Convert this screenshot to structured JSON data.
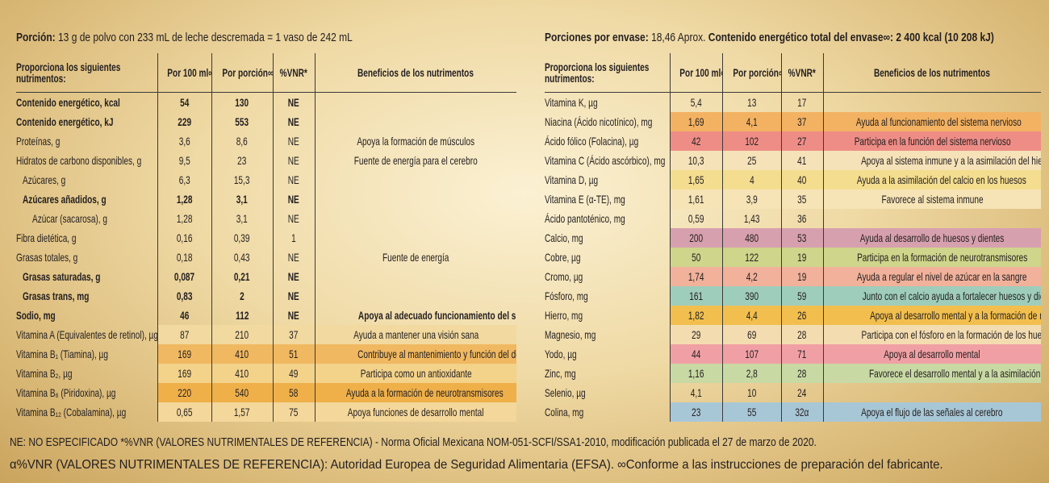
{
  "header": {
    "portion_label": "Porción:",
    "portion_text": "13 g de polvo con 233 mL de leche descremada = 1 vaso de 242 mL",
    "servings_label": "Porciones por envase:",
    "servings_text": "18,46 Aprox.",
    "energy_label": "Contenido energético total del envase∞:",
    "energy_value": "2 400 kcal (10 208 kJ)"
  },
  "tables": [
    {
      "columns": [
        "Proporciona los siguientes nutrimentos:",
        "Por 100 ml∞",
        "Por porción∞",
        "%VNR*",
        "Beneficios de los nutrimentos"
      ],
      "rows": [
        [
          "Contenido energético, kcal",
          "54",
          "130",
          "NE"
        ],
        [
          "Contenido energético, kJ",
          "229",
          "553",
          "NE"
        ],
        [
          "Proteínas, g",
          "3,6",
          "8,6",
          "NE",
          "Apoya la formación de músculos"
        ],
        [
          "Hidratos de carbono disponibles, g",
          "9,5",
          "23",
          "NE",
          "Fuente de energía para el cerebro"
        ],
        [
          "Azúcares, g",
          "6,3",
          "15,3",
          "NE"
        ],
        [
          "Azúcares añadidos, g",
          "1,28",
          "3,1",
          "NE"
        ],
        [
          "Azúcar (sacarosa), g",
          "1,28",
          "3,1",
          "NE"
        ],
        [
          "Fibra dietética, g",
          "0,16",
          "0,39",
          "1"
        ],
        [
          "Grasas totales, g",
          "0,18",
          "0,43",
          "NE",
          "Fuente de energía"
        ],
        [
          "Grasas saturadas, g",
          "0,087",
          "0,21",
          "NE"
        ],
        [
          "Grasas trans, mg",
          "0,83",
          "2",
          "NE"
        ],
        [
          "Sodio, mg",
          "46",
          "112",
          "NE",
          "Apoya al adecuado funcionamiento del sistema nervioso"
        ],
        [
          "Vitamina A (Equivalentes de retinol), µg",
          "87",
          "210",
          "37",
          "Ayuda a mantener una visión sana"
        ],
        [
          "Vitamina B₁ (Tiamina), µg",
          "169",
          "410",
          "51",
          "Contribuye al mantenimiento y función del desarrollo mental"
        ],
        [
          "Vitamina B₂, µg",
          "169",
          "410",
          "49",
          "Participa como un antioxidante"
        ],
        [
          "Vitamina B₆ (Piridoxina), µg",
          "220",
          "540",
          "58",
          "Ayuda a la formación de neurotransmisores"
        ],
        [
          "Vitamina B₁₂ (Cobalamina), µg",
          "0,65",
          "1,57",
          "75",
          "Apoya funciones de desarrollo mental"
        ]
      ]
    },
    {
      "columns": [
        "Proporciona los siguientes nutrimentos:",
        "Por 100 ml∞",
        "Por porción∞",
        "%VNR*",
        "Beneficios de los nutrimentos"
      ],
      "rows": [
        [
          "Vitamina K, µg",
          "5,4",
          "13",
          "17"
        ],
        [
          "Niacina (Ácido nicotínico), mg",
          "1,69",
          "4,1",
          "37",
          "Ayuda al funcionamiento del sistema nervioso"
        ],
        [
          "Ácido fólico (Folacina), µg",
          "42",
          "102",
          "27",
          "Participa en la función del sistema nervioso"
        ],
        [
          "Vitamina C (Ácido ascórbico), mg",
          "10,3",
          "25",
          "41",
          "Apoya al sistema inmune y a la asimilación del hierro"
        ],
        [
          "Vitamina D, µg",
          "1,65",
          "4",
          "40",
          "Ayuda a la asimilación del calcio en los huesos"
        ],
        [
          "Vitamina E (α-TE), mg",
          "1,61",
          "3,9",
          "35",
          "Favorece al sistema inmune"
        ],
        [
          "Ácido pantoténico, mg",
          "0,59",
          "1,43",
          "36"
        ],
        [
          "Calcio, mg",
          "200",
          "480",
          "53",
          "Ayuda al desarrollo de huesos y dientes"
        ],
        [
          "Cobre, µg",
          "50",
          "122",
          "19",
          "Participa en la formación de neurotransmisores"
        ],
        [
          "Cromo, µg",
          "1,74",
          "4,2",
          "19",
          "Ayuda a regular el nivel de azúcar en la sangre"
        ],
        [
          "Fósforo, mg",
          "161",
          "390",
          "59",
          "Junto con el calcio ayuda a fortalecer huesos y dientes"
        ],
        [
          "Hierro, mg",
          "1,82",
          "4,4",
          "26",
          "Apoya al desarrollo mental y a la formación de neurotransmisores"
        ],
        [
          "Magnesio, mg",
          "29",
          "69",
          "28",
          "Participa con el fósforo en la formación de los huesos"
        ],
        [
          "Yodo, µg",
          "44",
          "107",
          "71",
          "Apoya al desarrollo mental"
        ],
        [
          "Zinc, mg",
          "1,16",
          "2,8",
          "28",
          "Favorece el desarrollo mental y a la asimilación de la Vitamina A"
        ],
        [
          "Selenio, µg",
          "4,1",
          "10",
          "24"
        ],
        [
          "Colina, mg",
          "23",
          "55",
          "32α",
          "Apoya el flujo de las señales al cerebro"
        ]
      ]
    }
  ],
  "footer": [
    "NE: NO ESPECIFICADO *%VNR (VALORES NUTRIMENTALES DE REFERENCIA) - Norma Oficial Mexicana NOM-051-SCFI/SSA1-2010, modificación publicada el 27 de marzo de 2020.",
    "α%VNR (VALORES NUTRIMENTALES DE REFERENCIA): Autoridad Europea de Seguridad Alimentaria (EFSA). ∞Conforme a las instrucciones de preparación del fabricante."
  ]
}
